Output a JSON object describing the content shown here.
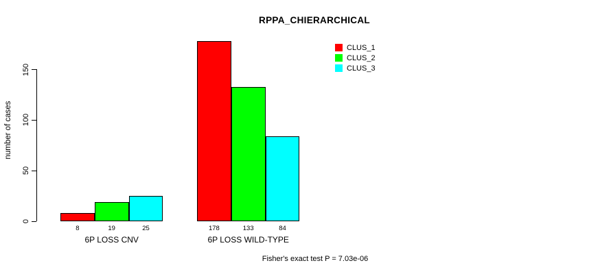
{
  "title": "RPPA_CHIERARCHICAL",
  "footer": "Fisher's exact test P = 7.03e-06",
  "y_axis": {
    "label": "number of cases",
    "ticks": [
      0,
      50,
      100,
      150
    ]
  },
  "legend": {
    "items": [
      {
        "label": "CLUS_1",
        "color": "#ff0000"
      },
      {
        "label": "CLUS_2",
        "color": "#00ff00"
      },
      {
        "label": "CLUS_3",
        "color": "#00ffff"
      }
    ]
  },
  "chart_data": {
    "type": "bar",
    "title": "RPPA_CHIERARCHICAL",
    "xlabel": "",
    "ylabel": "number of cases",
    "categories": [
      "6P LOSS CNV",
      "6P LOSS WILD-TYPE"
    ],
    "series": [
      {
        "name": "CLUS_1",
        "color": "#ff0000",
        "values": [
          8,
          178
        ]
      },
      {
        "name": "CLUS_2",
        "color": "#00ff00",
        "values": [
          19,
          133
        ]
      },
      {
        "name": "CLUS_3",
        "color": "#00ffff",
        "values": [
          25,
          84
        ]
      }
    ],
    "yticks": [
      0,
      50,
      100,
      150
    ],
    "ylim": [
      0,
      178
    ],
    "grid": false,
    "bar_value_labels": true,
    "legend_position": "top-right",
    "annotation": "Fisher's exact test P = 7.03e-06"
  }
}
